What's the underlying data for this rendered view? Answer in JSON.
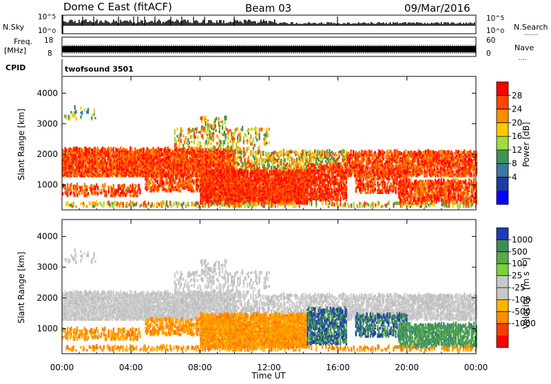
{
  "header": {
    "station": "Dome C East (fitACF)",
    "beam": "Beam 03",
    "date": "09/Mar/2016"
  },
  "noise_panel": {
    "left_label": "N.Sky",
    "right_label": "N.Search",
    "left_ticks": [
      {
        "base": "10",
        "exp": "^5"
      },
      {
        "base": "10",
        "exp": "^0"
      }
    ],
    "right_ticks": [
      {
        "base": "10",
        "exp": "^5"
      },
      {
        "base": "10",
        "exp": "^0"
      }
    ]
  },
  "freq_panel": {
    "left_label_top": "Freq.",
    "left_label_bottom": "[MHz]",
    "right_label": "Nave",
    "left_ticks": [
      "18",
      "8"
    ],
    "right_ticks": [
      "60",
      "0"
    ]
  },
  "cpid": {
    "label": "CPID",
    "program": "twofsound 3501"
  },
  "chart_data": [
    {
      "type": "heatmap",
      "parameter": "Power",
      "ylabel": "Slant Range [km]",
      "yticks": [
        "4000",
        "3000",
        "2000",
        "1000"
      ],
      "colorbar_label": "Power [dB]",
      "colorbar_ticks": [
        "28",
        "24",
        "20",
        "16",
        "12",
        "8",
        "4"
      ],
      "colorbar_colors": [
        "#ff0000",
        "#ff4500",
        "#ff8c00",
        "#ffc800",
        "#a0dc3c",
        "#3c9650",
        "#3c78a0",
        "#1e3ca0",
        "#0000ff"
      ]
    },
    {
      "type": "heatmap",
      "parameter": "Velocity",
      "ylabel": "Slant Range [km]",
      "yticks": [
        "4000",
        "3000",
        "2000",
        "1000"
      ],
      "colorbar_label": "Velocity",
      "colorbar_unit": "[m s",
      "colorbar_unit_exp": "-1",
      "colorbar_unit_close": "]",
      "colorbar_ticks": [
        "1000",
        "500",
        "100",
        "25",
        "-25",
        "-100",
        "-500",
        "-1000"
      ],
      "colorbar_colors": [
        "#1e3cb4",
        "#3c8c5a",
        "#5aaa46",
        "#78d23c",
        "#c8c8c8",
        "#c8c8c8",
        "#ffb400",
        "#ff8c00",
        "#ff3c00",
        "#ff0000"
      ]
    }
  ],
  "xaxis": {
    "label": "Time UT",
    "ticks": [
      "00:00",
      "04:00",
      "08:00",
      "12:00",
      "16:00",
      "20:00",
      "00:00"
    ]
  }
}
